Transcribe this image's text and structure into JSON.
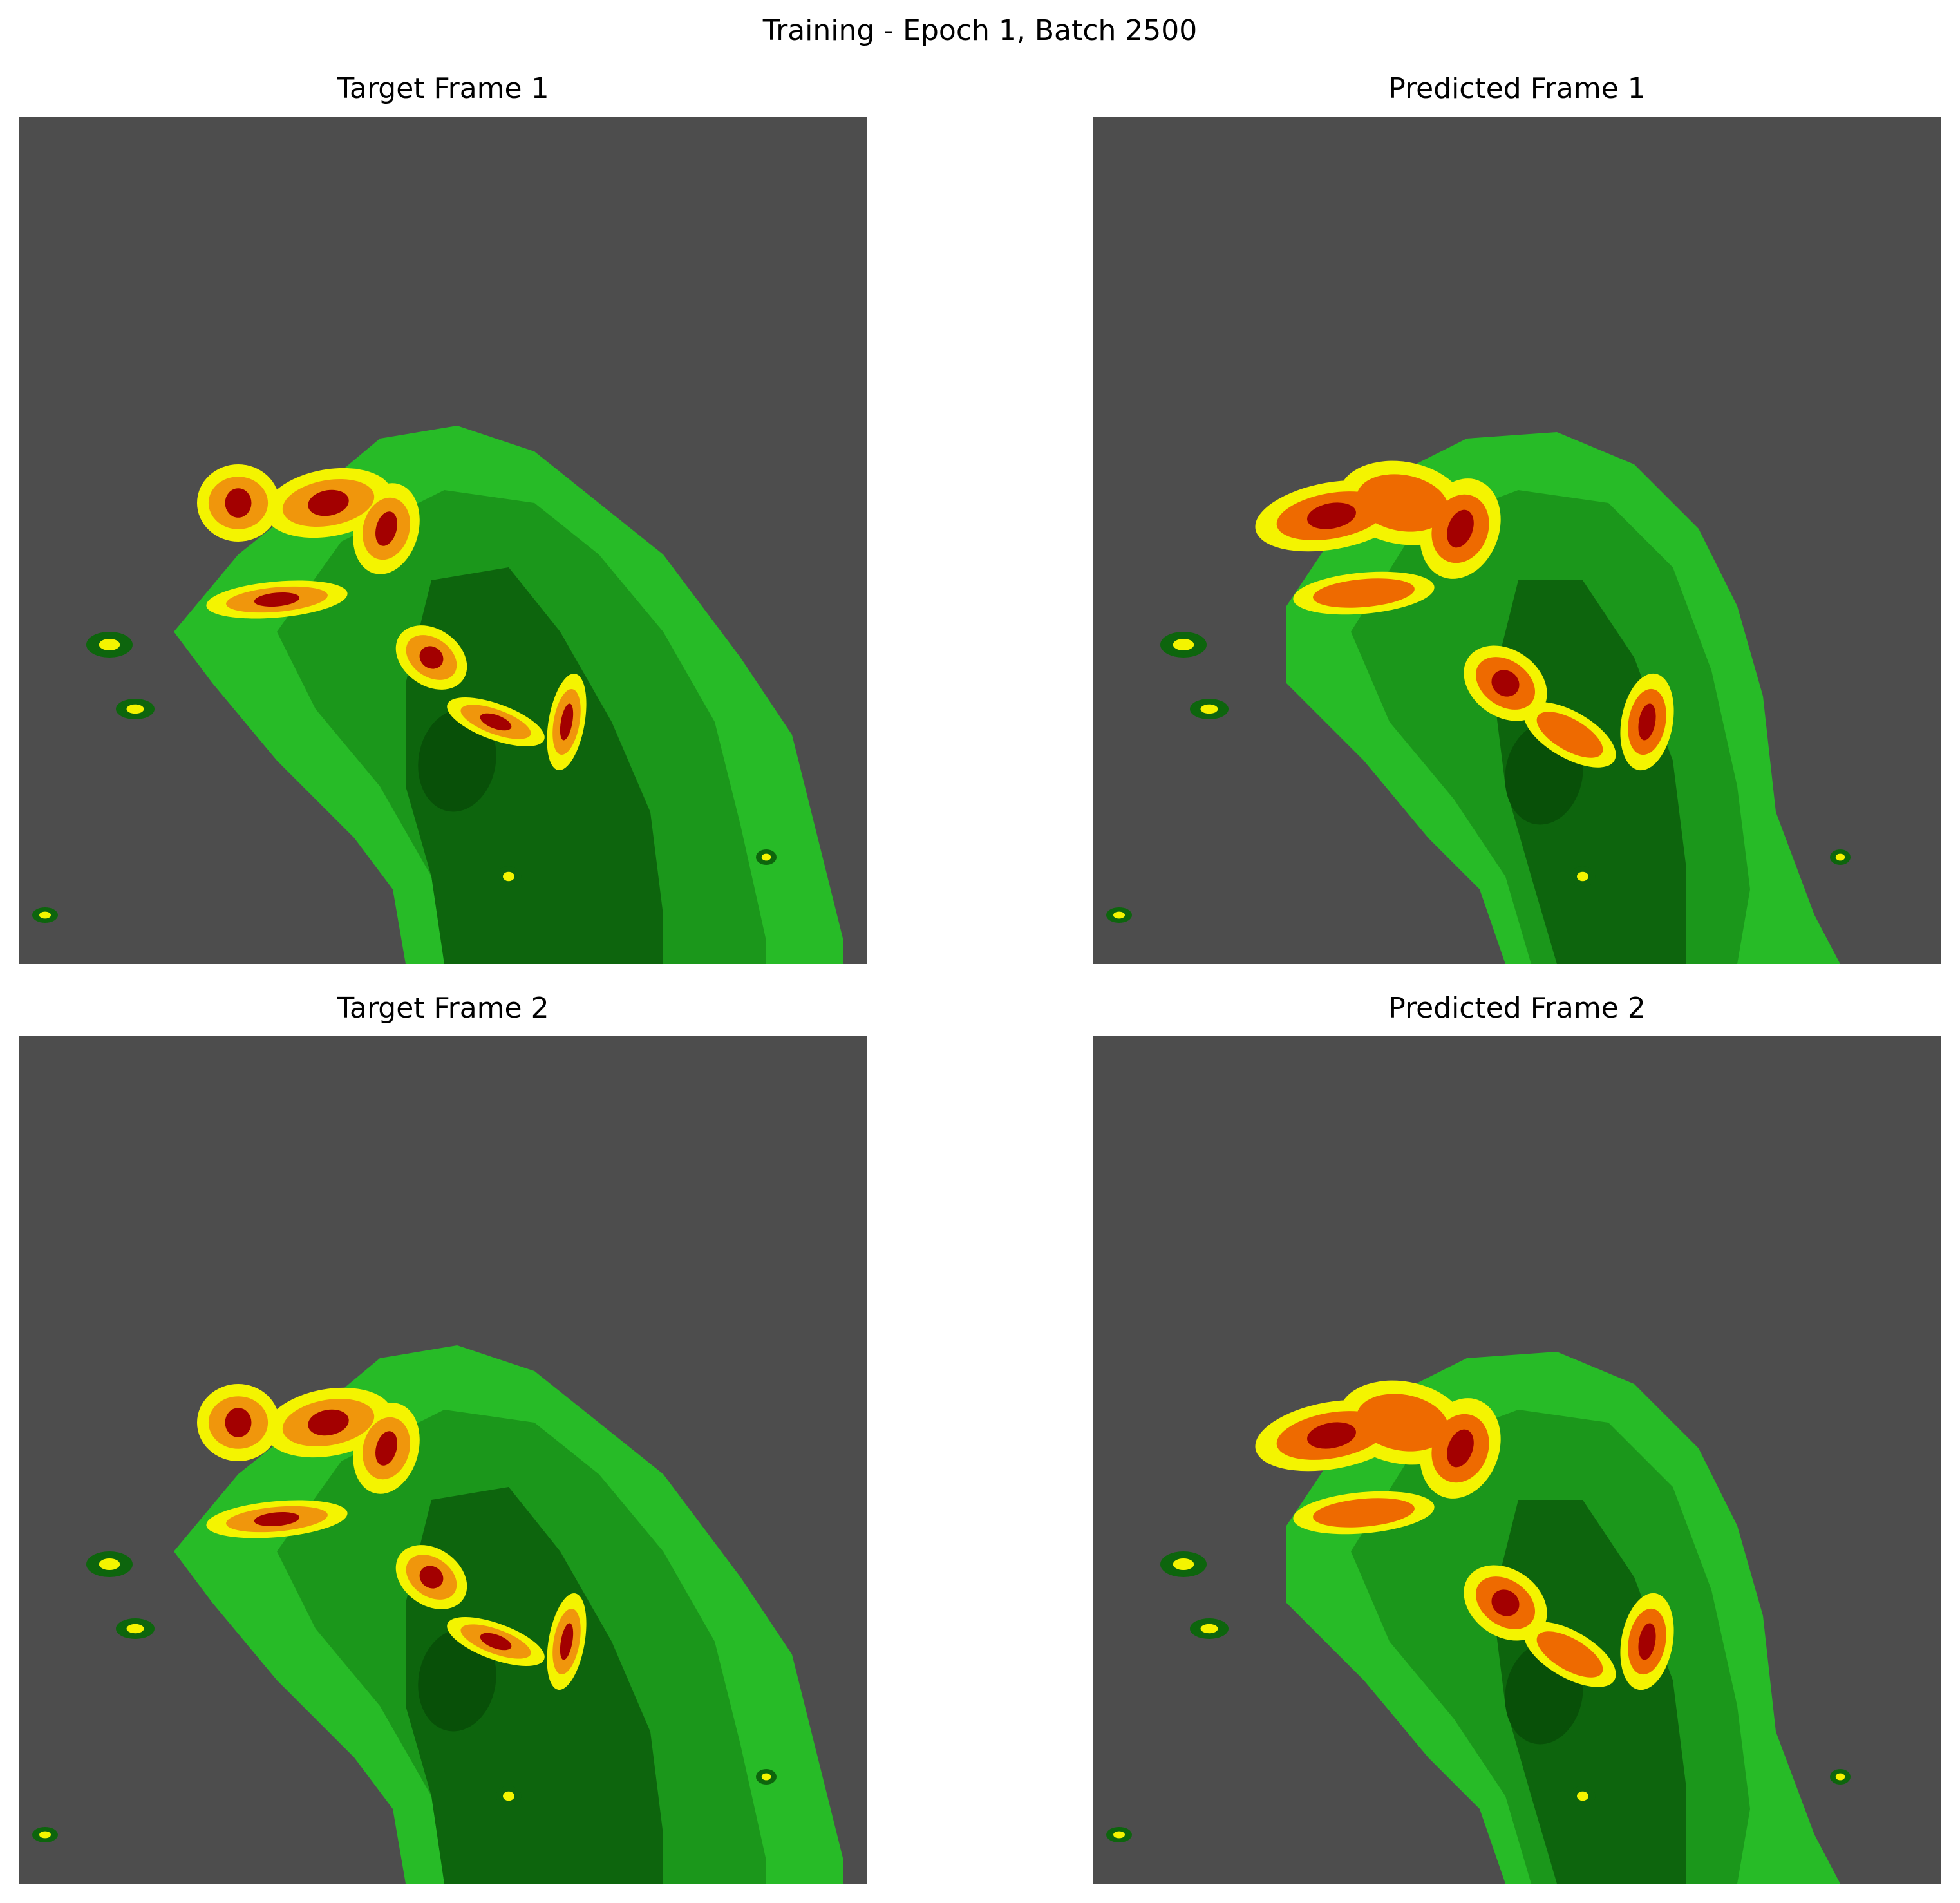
{
  "figure": {
    "suptitle": "Training - Epoch 1, Batch 2500"
  },
  "panels": [
    {
      "id": "target-1",
      "title": "Target Frame 1",
      "kind": "target"
    },
    {
      "id": "pred-1",
      "title": "Predicted Frame 1",
      "kind": "predicted"
    },
    {
      "id": "target-2",
      "title": "Target Frame 2",
      "kind": "target"
    },
    {
      "id": "pred-2",
      "title": "Predicted Frame 2",
      "kind": "predicted"
    }
  ],
  "colors": {
    "background": "#4d4d4d",
    "light_green": "#27bb27",
    "medium_green": "#1b971b",
    "dark_green": "#0d650d",
    "darkest_green": "#085008",
    "yellow": "#f4f400",
    "orange": "#f0960c",
    "dark_orange": "#ee6a00",
    "red": "#a30000"
  }
}
